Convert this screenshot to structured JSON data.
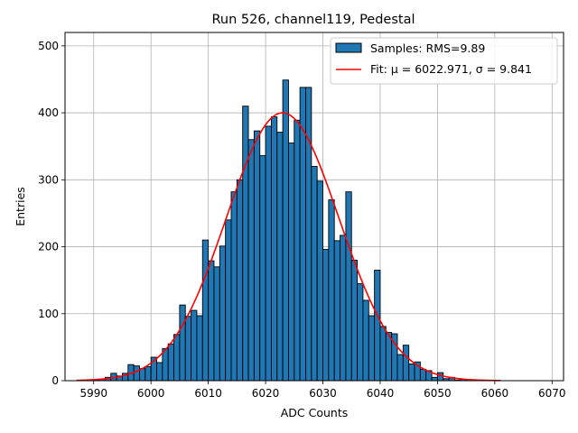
{
  "chart_data": {
    "type": "bar",
    "title": "Run 526, channel119, Pedestal",
    "xlabel": "ADC Counts",
    "ylabel": "Entries",
    "xlim": [
      5985,
      6072
    ],
    "ylim": [
      0,
      520
    ],
    "xticks": [
      5990,
      6000,
      6010,
      6020,
      6030,
      6040,
      6050,
      6060,
      6070
    ],
    "yticks": [
      0,
      100,
      200,
      300,
      400,
      500
    ],
    "grid": true,
    "legend_position": "top-right",
    "bar_color": "#1f77b4",
    "fit_color": "#ff0000",
    "histogram": {
      "name": "Samples: RMS=9.89",
      "bin_start": 5990,
      "bin_width": 1,
      "values": [
        1,
        2,
        5,
        11,
        7,
        11,
        24,
        22,
        18,
        21,
        35,
        27,
        48,
        55,
        69,
        113,
        96,
        105,
        97,
        210,
        179,
        170,
        201,
        240,
        282,
        300,
        410,
        360,
        373,
        336,
        380,
        394,
        371,
        449,
        355,
        389,
        438,
        438,
        320,
        298,
        196,
        270,
        209,
        217,
        282,
        180,
        145,
        120,
        97,
        165,
        81,
        72,
        70,
        39,
        53,
        25,
        28,
        17,
        15,
        5,
        12,
        3,
        5,
        1,
        2,
        1
      ]
    },
    "fit": {
      "name": "Fit: μ = 6022.971, σ = 9.841",
      "mu": 6022.971,
      "sigma": 9.841,
      "amplitude": 400,
      "x_range": [
        5987,
        6061
      ]
    }
  }
}
